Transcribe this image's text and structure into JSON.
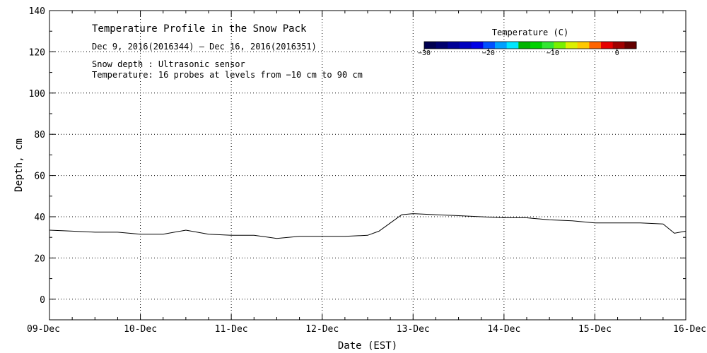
{
  "chart_data": {
    "type": "line",
    "title": "Temperature Profile in the Snow Pack",
    "subtitle": "Dec  9, 2016(2016344) — Dec 16, 2016(2016351)",
    "notes": [
      "Snow depth : Ultrasonic sensor",
      "Temperature: 16 probes at levels from −10 cm to 90 cm"
    ],
    "xlabel": "Date (EST)",
    "ylabel": "Depth, cm",
    "x_tick_labels": [
      "09-Dec",
      "10-Dec",
      "11-Dec",
      "12-Dec",
      "13-Dec",
      "14-Dec",
      "15-Dec",
      "16-Dec"
    ],
    "y_tick_labels": [
      "0",
      "20",
      "40",
      "60",
      "80",
      "100",
      "120",
      "140"
    ],
    "ylim": [
      -10,
      140
    ],
    "xlim": [
      "2016-12-09",
      "2016-12-16"
    ],
    "grid": true,
    "series": [
      {
        "color": "#000000",
        "x": [
          "2016-12-09 00:00",
          "2016-12-09 06:00",
          "2016-12-09 12:00",
          "2016-12-09 18:00",
          "2016-12-10 00:00",
          "2016-12-10 06:00",
          "2016-12-10 12:00",
          "2016-12-10 18:00",
          "2016-12-11 00:00",
          "2016-12-11 06:00",
          "2016-12-11 12:00",
          "2016-12-11 18:00",
          "2016-12-12 00:00",
          "2016-12-12 06:00",
          "2016-12-12 12:00",
          "2016-12-12 15:00",
          "2016-12-12 18:00",
          "2016-12-12 21:00",
          "2016-12-13 00:00",
          "2016-12-13 06:00",
          "2016-12-13 12:00",
          "2016-12-13 18:00",
          "2016-12-14 00:00",
          "2016-12-14 06:00",
          "2016-12-14 12:00",
          "2016-12-14 18:00",
          "2016-12-15 00:00",
          "2016-12-15 06:00",
          "2016-12-15 12:00",
          "2016-12-15 18:00",
          "2016-12-15 21:00",
          "2016-12-16 00:00"
        ],
        "y": [
          33.5,
          33,
          32.5,
          32.5,
          31.5,
          31.5,
          33.5,
          31.5,
          31,
          31,
          29.5,
          30.5,
          30.5,
          30.5,
          31,
          33,
          37,
          41,
          41.5,
          41,
          40.5,
          40,
          39.5,
          39.5,
          38.5,
          38,
          37,
          37,
          37,
          36.5,
          32,
          33
        ]
      }
    ],
    "colorbar": {
      "title": "Temperature (C)",
      "tick_labels": [
        "−30",
        "−20",
        "−10",
        "0"
      ],
      "range": [
        -30,
        3
      ],
      "colors": [
        "#000050",
        "#00006e",
        "#000096",
        "#0000be",
        "#0000e6",
        "#0050ff",
        "#00a0ff",
        "#00e6ff",
        "#00b400",
        "#00d200",
        "#32e632",
        "#78f000",
        "#dcf000",
        "#ffc800",
        "#ff6400",
        "#e60000",
        "#a00000",
        "#640000"
      ]
    }
  }
}
